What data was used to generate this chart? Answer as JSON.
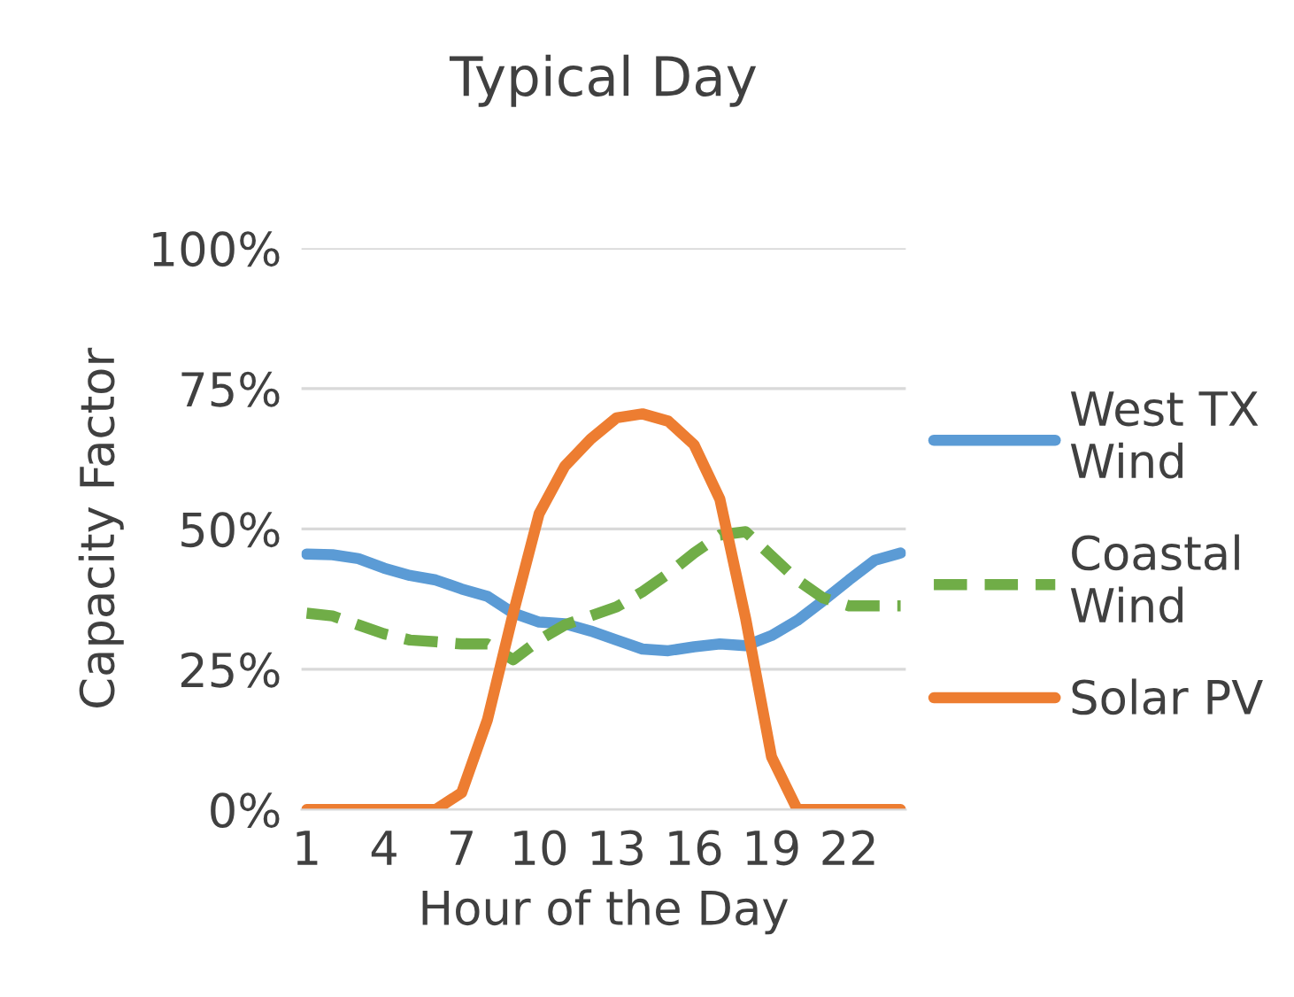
{
  "chart_data": {
    "type": "line",
    "title": "Typical Day",
    "xlabel": "Hour of the Day",
    "ylabel": "Capacity Factor",
    "x": [
      1,
      2,
      3,
      4,
      5,
      6,
      7,
      8,
      9,
      10,
      11,
      12,
      13,
      14,
      15,
      16,
      17,
      18,
      19,
      20,
      21,
      22,
      23,
      24
    ],
    "series": [
      {
        "name": "West TX\nWind",
        "color": "#5b9bd5",
        "line_style": "solid",
        "values": [
          45.5,
          45.4,
          44.7,
          43,
          41.7,
          40.9,
          39.3,
          38,
          35,
          33.4,
          33.1,
          31.8,
          30.2,
          28.6,
          28.3,
          29,
          29.5,
          29.2,
          31,
          33.7,
          37.2,
          40.9,
          44.4,
          45.7
        ]
      },
      {
        "name": "Coastal\nWind",
        "color": "#70ad47",
        "line_style": "dashed",
        "values": [
          35,
          34.5,
          32.9,
          31.3,
          30.2,
          29.9,
          29.5,
          29.5,
          26.7,
          30.2,
          32.9,
          34.5,
          36.1,
          38.8,
          42,
          45.7,
          48.9,
          49.5,
          45.2,
          40.9,
          37.7,
          36.3,
          36.3,
          36.3
        ]
      },
      {
        "name": "Solar PV",
        "color": "#ed7d31",
        "line_style": "solid",
        "values": [
          0,
          0,
          0,
          0,
          0,
          0,
          3,
          16,
          35,
          52.7,
          61.2,
          66,
          69.8,
          70.5,
          69.2,
          65,
          55.3,
          34,
          9.4,
          0,
          0,
          0,
          0,
          0
        ]
      }
    ],
    "xlim": [
      0.8,
      24.2
    ],
    "xticks": [
      1,
      4,
      7,
      10,
      13,
      16,
      19,
      22
    ],
    "ylim": [
      0,
      100
    ],
    "yticks": [
      {
        "value": 0,
        "label": "0%"
      },
      {
        "value": 25,
        "label": "25%"
      },
      {
        "value": 50,
        "label": "50%"
      },
      {
        "value": 75,
        "label": "75%"
      },
      {
        "value": 100,
        "label": "100%"
      }
    ],
    "grid": "y",
    "legend": "right",
    "marker": "none"
  }
}
